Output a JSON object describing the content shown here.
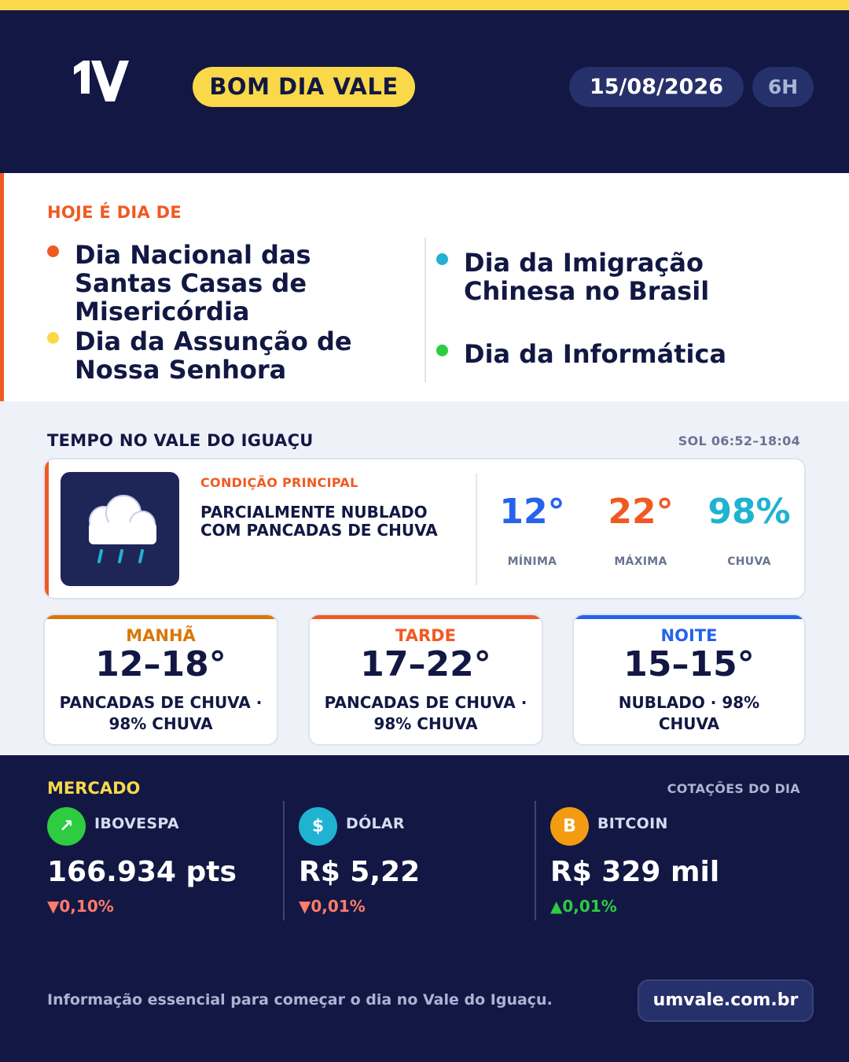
{
  "header": {
    "logo_text": "1V",
    "badge": "BOM DIA VALE",
    "date": "15/08/2026",
    "hour": "6H"
  },
  "days": {
    "title": "HOJE É DIA DE",
    "items": [
      {
        "label": "Dia Nacional das Santas Casas de Misericórdia",
        "color": "#f05a22"
      },
      {
        "label": "Dia da Assunção de Nossa Senhora",
        "color": "#f9d949"
      },
      {
        "label": "Dia da Imigração Chinesa no Brasil",
        "color": "#1fb3d1"
      },
      {
        "label": "Dia da Informática",
        "color": "#2ecc40"
      }
    ]
  },
  "weather": {
    "title": "TEMPO NO VALE DO IGUAÇU",
    "sun": "SOL 06:52–18:04",
    "icon": "rain-cloud-icon",
    "condition_label": "CONDIÇÃO PRINCIPAL",
    "condition": "PARCIALMENTE NUBLADO COM PANCADAS DE CHUVA",
    "min": {
      "value": "12°",
      "label": "MÍNIMA",
      "color": "#2563eb"
    },
    "max": {
      "value": "22°",
      "label": "MÁXIMA",
      "color": "#f05a22"
    },
    "rain": {
      "value": "98%",
      "label": "CHUVA",
      "color": "#1fb3d1"
    },
    "periods": [
      {
        "name": "MANHÃ",
        "temp": "12–18°",
        "desc": "PANCADAS DE CHUVA · 98% CHUVA",
        "color": "#d97706"
      },
      {
        "name": "TARDE",
        "temp": "17–22°",
        "desc": "PANCADAS DE CHUVA · 98% CHUVA",
        "color": "#f05a22"
      },
      {
        "name": "NOITE",
        "temp": "15–15°",
        "desc": "NUBLADO · 98% CHUVA",
        "color": "#2563eb"
      }
    ]
  },
  "market": {
    "title": "MERCADO",
    "subtitle": "COTAÇÕES DO DIA",
    "items": [
      {
        "name": "IBOVESPA",
        "icon": "trend-up-icon",
        "glyph": "↗",
        "icon_color": "#2ecc40",
        "value": "166.934 pts",
        "change": "0,10%",
        "direction": "down"
      },
      {
        "name": "DÓLAR",
        "icon": "dollar-icon",
        "glyph": "$",
        "icon_color": "#1fb3d1",
        "value": "R$ 5,22",
        "change": "0,01%",
        "direction": "down"
      },
      {
        "name": "BITCOIN",
        "icon": "bitcoin-icon",
        "glyph": "B",
        "icon_color": "#f39c12",
        "value": "R$ 329 mil",
        "change": "0,01%",
        "direction": "up"
      }
    ]
  },
  "footer": {
    "text": "Informação essencial para começar o dia no Vale do Iguaçu.",
    "link": "umvale.com.br"
  }
}
